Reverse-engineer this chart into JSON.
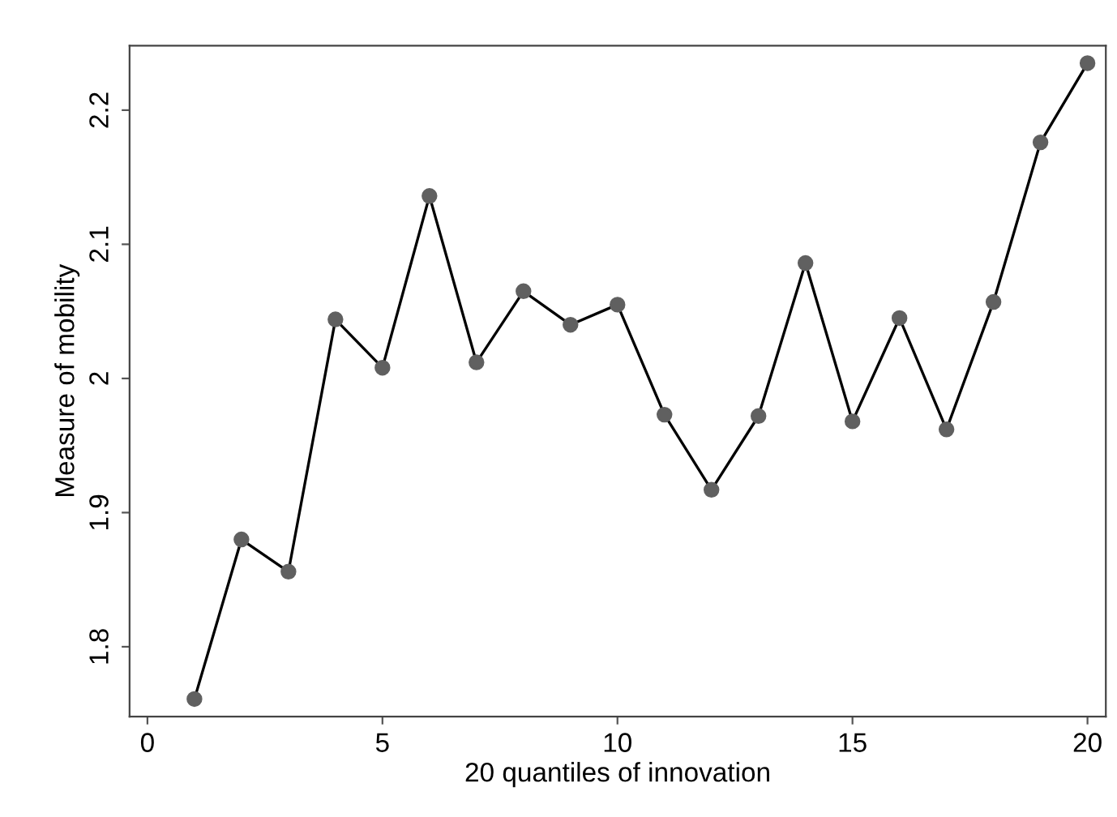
{
  "chart_data": {
    "type": "line",
    "xlabel": "20 quantiles of innovation",
    "ylabel": "Measure of mobility",
    "x": [
      1,
      2,
      3,
      4,
      5,
      6,
      7,
      8,
      9,
      10,
      11,
      12,
      13,
      14,
      15,
      16,
      17,
      18,
      19,
      20
    ],
    "series": [
      {
        "color": "#000000",
        "values": [
          1.761,
          1.88,
          1.856,
          2.044,
          2.008,
          2.136,
          2.012,
          2.065,
          2.04,
          2.055,
          1.973,
          1.917,
          1.972,
          2.086,
          1.968,
          2.045,
          1.962,
          2.057,
          2.176,
          2.235
        ]
      }
    ],
    "marker": "circle",
    "line_style": "solid",
    "grid": false,
    "legend": false,
    "xlim": [
      -0.38,
      20.39
    ],
    "ylim": [
      1.748,
      2.248
    ],
    "xticks": [
      0,
      5,
      10,
      15,
      20
    ],
    "yticks": [
      1.8,
      1.9,
      2,
      2.1,
      2.2
    ]
  }
}
